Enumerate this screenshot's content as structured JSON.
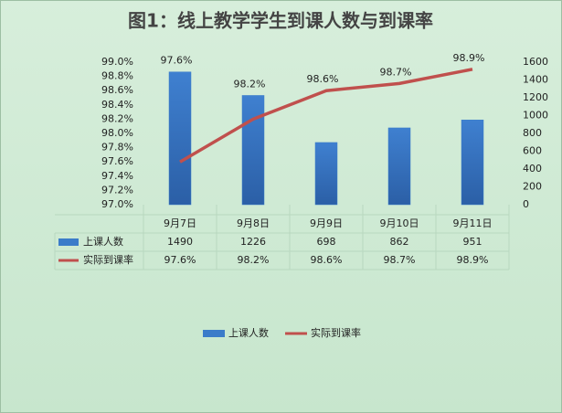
{
  "chart_data": {
    "type": "combo",
    "title": "图1：线上教学学生到课人数与到课率",
    "categories": [
      "9月7日",
      "9月8日",
      "9月9日",
      "9月10日",
      "9月11日"
    ],
    "series": [
      {
        "name": "上课人数",
        "type": "bar",
        "axis": "y2",
        "color": "#3b7cc9",
        "values": [
          1490,
          1226,
          698,
          862,
          951
        ]
      },
      {
        "name": "实际到课率",
        "type": "line",
        "color": "#c0504d",
        "values": [
          97.6,
          98.2,
          98.6,
          98.7,
          98.9
        ],
        "value_labels": [
          "97.6%",
          "98.2%",
          "98.6%",
          "98.7%",
          "98.9%"
        ]
      }
    ],
    "ylim": [
      97.0,
      99.0
    ],
    "yticks": [
      {
        "value": 97.0,
        "label": "97.0%"
      },
      {
        "value": 97.2,
        "label": "97.2%"
      },
      {
        "value": 97.4,
        "label": "97.4%"
      },
      {
        "value": 97.6,
        "label": "97.6%"
      },
      {
        "value": 97.8,
        "label": "97.8%"
      },
      {
        "value": 98.0,
        "label": "98.0%"
      },
      {
        "value": 98.2,
        "label": "98.2%"
      },
      {
        "value": 98.4,
        "label": "98.4%"
      },
      {
        "value": 98.6,
        "label": "98.6%"
      },
      {
        "value": 98.8,
        "label": "98.8%"
      },
      {
        "value": 99.0,
        "label": "99.0%"
      }
    ],
    "y2lim": [
      0,
      1600
    ],
    "y2ticks": [
      0,
      200,
      400,
      600,
      800,
      1000,
      1200,
      1400,
      1600
    ],
    "legend": "bottom"
  }
}
